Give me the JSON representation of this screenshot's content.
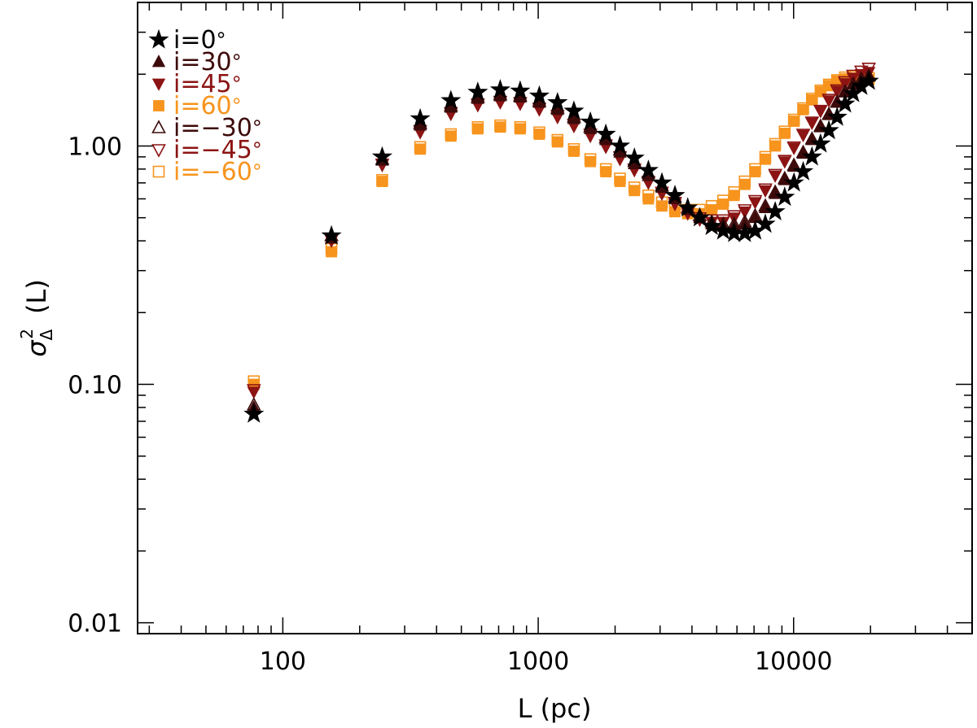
{
  "chart_data": {
    "type": "scatter",
    "title": "",
    "xlabel": "L (pc)",
    "ylabel": "σ²_Δ (L)",
    "ylabel_parts": {
      "symbol": "σ",
      "sup": "2",
      "sub": "Δ",
      "arg": "(L)"
    },
    "xscale": "log",
    "yscale": "log",
    "xlim": [
      27,
      50000
    ],
    "ylim": [
      0.009,
      4.0
    ],
    "xticks": [
      100,
      1000,
      10000
    ],
    "xtick_labels": [
      "100",
      "1000",
      "10000"
    ],
    "yticks": [
      0.01,
      0.1,
      1.0
    ],
    "ytick_labels": [
      "0.01",
      "0.10",
      "1.00"
    ],
    "grid": false,
    "legend_position": "top-left",
    "x": [
      77,
      155,
      245,
      345,
      455,
      580,
      710,
      850,
      1010,
      1190,
      1380,
      1600,
      1840,
      2090,
      2380,
      2700,
      3050,
      3430,
      3850,
      4290,
      4780,
      5300,
      5850,
      6440,
      7070,
      7750,
      8470,
      9230,
      10030,
      10900,
      11800,
      12750,
      13750,
      14800,
      15900,
      17100,
      18400,
      19700
    ],
    "series": [
      {
        "name": "i=0°",
        "label": "i=0",
        "marker": "star",
        "filled": true,
        "color": "#000000",
        "values": [
          0.075,
          0.42,
          0.9,
          1.3,
          1.55,
          1.68,
          1.72,
          1.7,
          1.62,
          1.52,
          1.4,
          1.26,
          1.12,
          1.0,
          0.89,
          0.79,
          0.7,
          0.62,
          0.55,
          0.5,
          0.46,
          0.44,
          0.43,
          0.43,
          0.44,
          0.47,
          0.53,
          0.61,
          0.7,
          0.78,
          0.9,
          1.02,
          1.16,
          1.32,
          1.5,
          1.66,
          1.78,
          1.87
        ]
      },
      {
        "name": "i=30°",
        "label": "i=30",
        "marker": "triangle-up",
        "filled": true,
        "color": "#3d0a0a",
        "values": [
          0.08,
          0.41,
          0.87,
          1.22,
          1.45,
          1.58,
          1.62,
          1.6,
          1.52,
          1.42,
          1.3,
          1.18,
          1.06,
          0.94,
          0.84,
          0.75,
          0.67,
          0.6,
          0.54,
          0.5,
          0.47,
          0.46,
          0.46,
          0.47,
          0.5,
          0.55,
          0.63,
          0.72,
          0.82,
          0.93,
          1.06,
          1.2,
          1.35,
          1.52,
          1.68,
          1.81,
          1.9,
          1.96
        ]
      },
      {
        "name": "i=45°",
        "label": "i=45",
        "marker": "triangle-down",
        "filled": true,
        "color": "#8c1414",
        "values": [
          0.093,
          0.4,
          0.83,
          1.14,
          1.36,
          1.48,
          1.52,
          1.5,
          1.42,
          1.32,
          1.21,
          1.1,
          0.99,
          0.88,
          0.79,
          0.7,
          0.63,
          0.57,
          0.52,
          0.49,
          0.48,
          0.48,
          0.5,
          0.53,
          0.58,
          0.65,
          0.75,
          0.86,
          0.98,
          1.11,
          1.25,
          1.4,
          1.55,
          1.7,
          1.83,
          1.93,
          2.0,
          2.04
        ]
      },
      {
        "name": "i=60°",
        "label": "i=60",
        "marker": "square",
        "filled": true,
        "color": "#f7941d",
        "values": [
          0.1,
          0.36,
          0.71,
          0.97,
          1.1,
          1.18,
          1.2,
          1.18,
          1.12,
          1.04,
          0.95,
          0.86,
          0.78,
          0.71,
          0.65,
          0.6,
          0.56,
          0.53,
          0.52,
          0.52,
          0.54,
          0.57,
          0.62,
          0.69,
          0.78,
          0.88,
          1.0,
          1.13,
          1.27,
          1.42,
          1.56,
          1.69,
          1.79,
          1.87,
          1.91,
          1.93,
          1.92,
          1.9
        ]
      },
      {
        "name": "i=-30°",
        "label": "i=−30",
        "marker": "triangle-up",
        "filled": false,
        "color": "#3d0a0a",
        "values": [
          0.082,
          0.42,
          0.88,
          1.24,
          1.47,
          1.6,
          1.64,
          1.62,
          1.54,
          1.44,
          1.32,
          1.2,
          1.08,
          0.96,
          0.86,
          0.77,
          0.68,
          0.61,
          0.55,
          0.51,
          0.48,
          0.47,
          0.47,
          0.48,
          0.51,
          0.56,
          0.64,
          0.73,
          0.83,
          0.94,
          1.07,
          1.21,
          1.36,
          1.53,
          1.69,
          1.82,
          1.91,
          1.97
        ]
      },
      {
        "name": "i=-45°",
        "label": "i=−45",
        "marker": "triangle-down",
        "filled": false,
        "color": "#8c1414",
        "values": [
          0.095,
          0.41,
          0.84,
          1.16,
          1.38,
          1.5,
          1.54,
          1.52,
          1.44,
          1.34,
          1.23,
          1.12,
          1.01,
          0.9,
          0.8,
          0.71,
          0.64,
          0.58,
          0.53,
          0.5,
          0.49,
          0.49,
          0.51,
          0.54,
          0.59,
          0.66,
          0.76,
          0.87,
          0.99,
          1.12,
          1.26,
          1.41,
          1.57,
          1.72,
          1.86,
          1.98,
          2.06,
          2.12
        ]
      },
      {
        "name": "i=-60°",
        "label": "i=−60",
        "marker": "square",
        "filled": false,
        "color": "#f7941d",
        "values": [
          0.103,
          0.37,
          0.72,
          0.99,
          1.12,
          1.2,
          1.22,
          1.2,
          1.14,
          1.06,
          0.97,
          0.88,
          0.8,
          0.73,
          0.67,
          0.62,
          0.58,
          0.55,
          0.54,
          0.54,
          0.56,
          0.59,
          0.64,
          0.71,
          0.8,
          0.9,
          1.02,
          1.15,
          1.29,
          1.44,
          1.58,
          1.71,
          1.81,
          1.89,
          1.94,
          1.96,
          1.95,
          1.93
        ]
      }
    ]
  }
}
